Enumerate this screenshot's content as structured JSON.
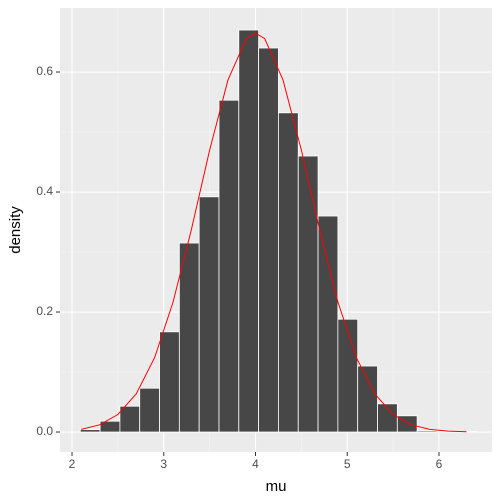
{
  "chart_data": {
    "type": "histogram",
    "xlabel": "mu",
    "ylabel": "density",
    "bins": [
      2.09,
      2.306,
      2.522,
      2.738,
      2.954,
      3.17,
      3.386,
      3.602,
      3.818,
      4.034,
      4.25,
      4.466,
      4.682,
      4.898,
      5.114,
      5.33,
      5.546,
      5.762,
      5.978,
      6.194,
      6.41
    ],
    "values": [
      0.004,
      0.018,
      0.043,
      0.073,
      0.167,
      0.315,
      0.392,
      0.553,
      0.67,
      0.64,
      0.532,
      0.46,
      0.36,
      0.188,
      0.11,
      0.047,
      0.027,
      0.002,
      0.001,
      0.001
    ],
    "color": "#474747",
    "curve": {
      "type": "line",
      "color": "#ff0000",
      "x": [
        2.1,
        2.3,
        2.5,
        2.7,
        2.9,
        3.1,
        3.3,
        3.5,
        3.7,
        3.9,
        4.0,
        4.1,
        4.3,
        4.5,
        4.7,
        4.9,
        5.1,
        5.3,
        5.5,
        5.7,
        5.9,
        6.1,
        6.3
      ],
      "values": [
        0.0044,
        0.012,
        0.0292,
        0.0636,
        0.1238,
        0.2159,
        0.3367,
        0.4698,
        0.5868,
        0.6557,
        0.6649,
        0.6557,
        0.5868,
        0.4698,
        0.3367,
        0.2159,
        0.1238,
        0.0636,
        0.0292,
        0.012,
        0.0044,
        0.0015,
        0.0004
      ]
    },
    "xlim": [
      1.869,
      6.578
    ],
    "ylim": [
      -0.0333,
      0.7067
    ],
    "xticks": [
      2,
      3,
      4,
      5,
      6
    ],
    "yticks": [
      {
        "value": 0,
        "label": "0.0"
      },
      0.2,
      0.4,
      0.6
    ],
    "grid": true
  }
}
